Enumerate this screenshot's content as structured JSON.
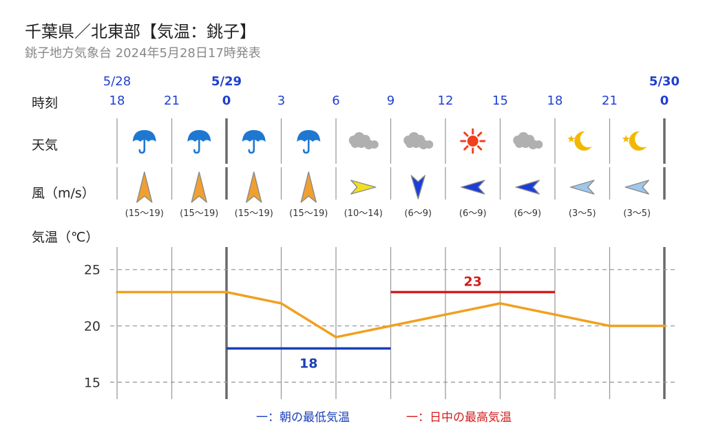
{
  "header": {
    "title": "千葉県／北東部【気温：銚子】",
    "subtitle": "銚子地方気象台 2024年5月28日17時発表"
  },
  "labels": {
    "time": "時刻",
    "weather": "天気",
    "wind": "風（m/s）",
    "temperature": "気温（℃）"
  },
  "legend": {
    "low": "一：朝の最低気温",
    "high": "一：日中の最高気温"
  },
  "colors": {
    "temp_line": "#f0a020",
    "low_line": "#1a3fb8",
    "high_line": "#d41c1c",
    "date_blue": "#1f3fd0",
    "rain": "#1e78d2",
    "cloud": "#b0b0b0",
    "sun": "#f04020",
    "moon": "#f2b800",
    "wind_strong": "#f0a030",
    "wind_mid_yellow": "#f0e020",
    "wind_blue": "#1a3fd8",
    "wind_light": "#9ec8ec"
  },
  "dates": [
    {
      "label": "5/28",
      "at_index": 0,
      "bold": false
    },
    {
      "label": "5/29",
      "at_index": 2,
      "bold": true
    },
    {
      "label": "5/30",
      "at_index": 10,
      "bold": true
    }
  ],
  "chart_data": {
    "type": "line",
    "x": [
      "18",
      "21",
      "0",
      "3",
      "6",
      "9",
      "12",
      "15",
      "18",
      "21",
      "0"
    ],
    "series": [
      {
        "values": [
          23,
          23,
          23,
          22,
          19,
          20,
          21,
          22,
          21,
          20,
          20
        ]
      }
    ],
    "min_temp": {
      "value": 18,
      "label": "18",
      "from_index": 2,
      "to_index": 5
    },
    "max_temp": {
      "value": 23,
      "label": "23",
      "from_index": 5,
      "to_index": 8
    },
    "y_ticks": [
      "25",
      "20",
      "15"
    ],
    "ylim": [
      13.5,
      27
    ],
    "grid": true,
    "weather": [
      {
        "icon": "umbrella-icon"
      },
      {
        "icon": "umbrella-icon"
      },
      {
        "icon": "umbrella-icon"
      },
      {
        "icon": "umbrella-icon"
      },
      {
        "icon": "cloud-icon"
      },
      {
        "icon": "cloud-icon"
      },
      {
        "icon": "sun-icon"
      },
      {
        "icon": "cloud-icon"
      },
      {
        "icon": "moon-icon"
      },
      {
        "icon": "moon-icon"
      }
    ],
    "wind": [
      {
        "direction": "N",
        "speed": "(15〜19)",
        "level": "strong"
      },
      {
        "direction": "N",
        "speed": "(15〜19)",
        "level": "strong"
      },
      {
        "direction": "N",
        "speed": "(15〜19)",
        "level": "strong"
      },
      {
        "direction": "N",
        "speed": "(15〜19)",
        "level": "strong"
      },
      {
        "direction": "E",
        "speed": "(10〜14)",
        "level": "mid"
      },
      {
        "direction": "S",
        "speed": "(6〜9)",
        "level": "moderate"
      },
      {
        "direction": "W",
        "speed": "(6〜9)",
        "level": "moderate"
      },
      {
        "direction": "W",
        "speed": "(6〜9)",
        "level": "moderate"
      },
      {
        "direction": "W",
        "speed": "(3〜5)",
        "level": "light"
      },
      {
        "direction": "W",
        "speed": "(3〜5)",
        "level": "light"
      }
    ]
  }
}
